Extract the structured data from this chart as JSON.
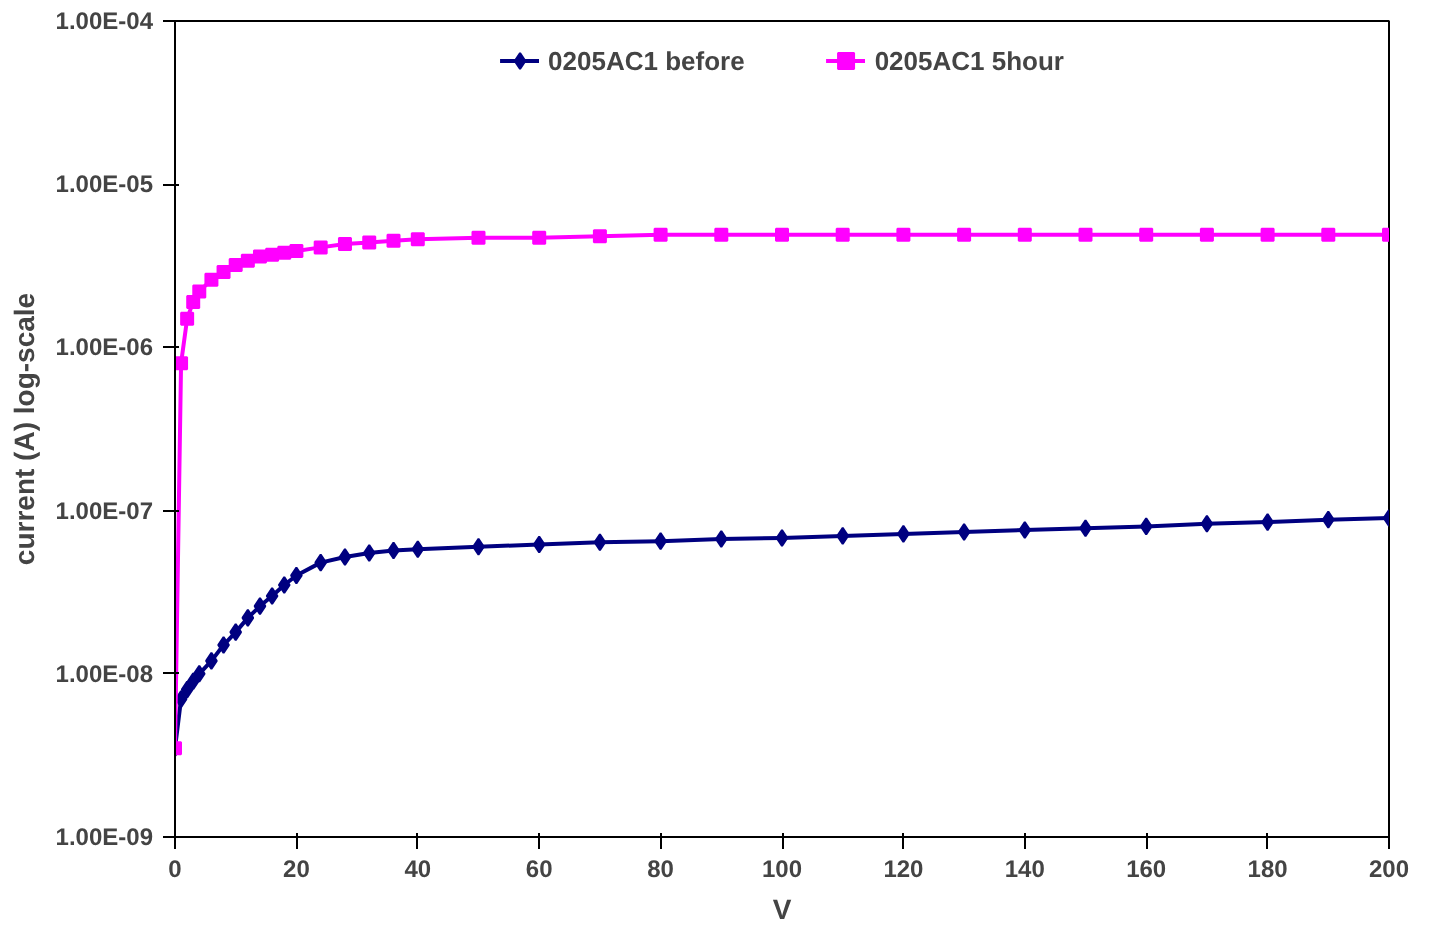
{
  "chart_data": {
    "type": "line",
    "xlabel": "V",
    "ylabel": "current (A) log-scale",
    "log": "y",
    "grid": false,
    "legend": "top",
    "xlim": [
      0,
      200
    ],
    "xticks": [
      0,
      20,
      40,
      60,
      80,
      100,
      120,
      140,
      160,
      180,
      200
    ],
    "ylim": [
      1e-09,
      0.0001
    ],
    "yticks": [
      {
        "value": 1e-09,
        "label": "1.00E-09"
      },
      {
        "value": 1e-08,
        "label": "1.00E-08"
      },
      {
        "value": 1e-07,
        "label": "1.00E-07"
      },
      {
        "value": 1e-06,
        "label": "1.00E-06"
      },
      {
        "value": 1e-05,
        "label": "1.00E-05"
      },
      {
        "value": 0.0001,
        "label": "1.00E-04"
      }
    ],
    "x": [
      0,
      1,
      2,
      3,
      4,
      6,
      8,
      10,
      12,
      14,
      16,
      18,
      20,
      24,
      28,
      32,
      36,
      40,
      50,
      60,
      70,
      80,
      90,
      100,
      110,
      120,
      130,
      140,
      150,
      160,
      170,
      180,
      190,
      200
    ],
    "series": [
      {
        "name": "0205AC1 before",
        "color": "#000080",
        "marker": "diamond",
        "values": [
          3.5e-09,
          7e-09,
          8e-09,
          9e-09,
          1e-08,
          1.2e-08,
          1.5e-08,
          1.8e-08,
          2.2e-08,
          2.6e-08,
          3e-08,
          3.5e-08,
          4e-08,
          4.8e-08,
          5.2e-08,
          5.5e-08,
          5.7e-08,
          5.8e-08,
          6e-08,
          6.2e-08,
          6.4e-08,
          6.5e-08,
          6.7e-08,
          6.8e-08,
          7e-08,
          7.2e-08,
          7.4e-08,
          7.6e-08,
          7.8e-08,
          8e-08,
          8.3e-08,
          8.5e-08,
          8.8e-08,
          9e-08
        ]
      },
      {
        "name": "0205AC1 5hour",
        "color": "#ff00ff",
        "marker": "square",
        "values": [
          3.5e-09,
          8e-07,
          1.5e-06,
          1.9e-06,
          2.2e-06,
          2.6e-06,
          2.9e-06,
          3.2e-06,
          3.4e-06,
          3.6e-06,
          3.7e-06,
          3.8e-06,
          3.9e-06,
          4.1e-06,
          4.3e-06,
          4.4e-06,
          4.5e-06,
          4.6e-06,
          4.7e-06,
          4.7e-06,
          4.8e-06,
          4.9e-06,
          4.9e-06,
          4.9e-06,
          4.9e-06,
          4.9e-06,
          4.9e-06,
          4.9e-06,
          4.9e-06,
          4.9e-06,
          4.9e-06,
          4.9e-06,
          4.9e-06,
          4.9e-06
        ]
      }
    ]
  }
}
